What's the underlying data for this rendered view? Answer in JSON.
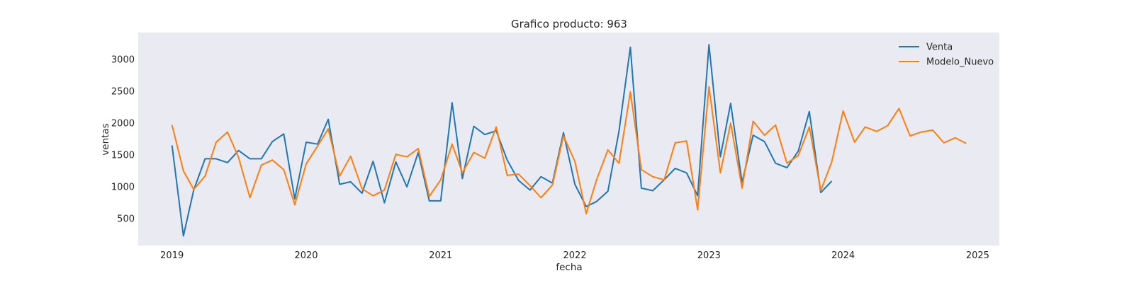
{
  "chart_data": {
    "type": "line",
    "title": "Grafico producto: 963",
    "xlabel": "fecha",
    "ylabel": "ventas",
    "xlim": [
      "2018-10-01",
      "2025-03-01"
    ],
    "ylim": [
      80,
      3420
    ],
    "x_ticks": [
      "2019-01-01",
      "2020-01-01",
      "2021-01-01",
      "2022-01-01",
      "2023-01-01",
      "2024-01-01",
      "2025-01-01"
    ],
    "x_tick_labels": [
      "2019",
      "2020",
      "2021",
      "2022",
      "2023",
      "2024",
      "2025"
    ],
    "y_ticks": [
      500,
      1000,
      1500,
      2000,
      2500,
      3000
    ],
    "y_tick_labels": [
      "500",
      "1000",
      "1500",
      "2000",
      "2500",
      "3000"
    ],
    "grid": false,
    "legend_position": "top-right",
    "background": "#eaeaf2",
    "series": [
      {
        "name": "Venta",
        "color": "#1f77b4",
        "x": [
          "2019-01",
          "2019-02",
          "2019-03",
          "2019-04",
          "2019-05",
          "2019-06",
          "2019-07",
          "2019-08",
          "2019-09",
          "2019-10",
          "2019-11",
          "2019-12",
          "2020-01",
          "2020-02",
          "2020-03",
          "2020-04",
          "2020-05",
          "2020-06",
          "2020-07",
          "2020-08",
          "2020-09",
          "2020-10",
          "2020-11",
          "2020-12",
          "2021-01",
          "2021-02",
          "2021-03",
          "2021-04",
          "2021-05",
          "2021-06",
          "2021-07",
          "2021-08",
          "2021-09",
          "2021-10",
          "2021-11",
          "2021-12",
          "2022-01",
          "2022-02",
          "2022-03",
          "2022-04",
          "2022-05",
          "2022-06",
          "2022-07",
          "2022-08",
          "2022-09",
          "2022-10",
          "2022-11",
          "2022-12",
          "2023-01",
          "2023-02",
          "2023-03",
          "2023-04",
          "2023-05",
          "2023-06",
          "2023-07",
          "2023-08",
          "2023-09",
          "2023-10",
          "2023-11",
          "2023-12"
        ],
        "values": [
          1650,
          230,
          950,
          1440,
          1440,
          1380,
          1570,
          1440,
          1440,
          1710,
          1830,
          810,
          1700,
          1670,
          2060,
          1040,
          1080,
          900,
          1400,
          750,
          1390,
          1000,
          1540,
          780,
          780,
          2320,
          1130,
          1950,
          1820,
          1880,
          1420,
          1100,
          950,
          1160,
          1060,
          1850,
          1040,
          690,
          770,
          930,
          1870,
          3190,
          980,
          940,
          1110,
          1290,
          1220,
          860,
          3230,
          1470,
          2310,
          1070,
          1810,
          1710,
          1370,
          1300,
          1560,
          2180,
          910,
          1090
        ]
      },
      {
        "name": "Modelo_Nuevo",
        "color": "#ff7f0e",
        "x": [
          "2019-01",
          "2019-02",
          "2019-03",
          "2019-04",
          "2019-05",
          "2019-06",
          "2019-07",
          "2019-08",
          "2019-09",
          "2019-10",
          "2019-11",
          "2019-12",
          "2020-01",
          "2020-02",
          "2020-03",
          "2020-04",
          "2020-05",
          "2020-06",
          "2020-07",
          "2020-08",
          "2020-09",
          "2020-10",
          "2020-11",
          "2020-12",
          "2021-01",
          "2021-02",
          "2021-03",
          "2021-04",
          "2021-05",
          "2021-06",
          "2021-07",
          "2021-08",
          "2021-09",
          "2021-10",
          "2021-11",
          "2021-12",
          "2022-01",
          "2022-02",
          "2022-03",
          "2022-04",
          "2022-05",
          "2022-06",
          "2022-07",
          "2022-08",
          "2022-09",
          "2022-10",
          "2022-11",
          "2022-12",
          "2023-01",
          "2023-02",
          "2023-03",
          "2023-04",
          "2023-05",
          "2023-06",
          "2023-07",
          "2023-08",
          "2023-09",
          "2023-10",
          "2023-11",
          "2023-12",
          "2024-01",
          "2024-02",
          "2024-03",
          "2024-04",
          "2024-05",
          "2024-06",
          "2024-07",
          "2024-08",
          "2024-09",
          "2024-10",
          "2024-11",
          "2024-12"
        ],
        "values": [
          1970,
          1250,
          960,
          1170,
          1700,
          1860,
          1460,
          830,
          1340,
          1420,
          1270,
          720,
          1360,
          1640,
          1910,
          1170,
          1480,
          970,
          860,
          950,
          1510,
          1470,
          1600,
          850,
          1110,
          1670,
          1220,
          1540,
          1450,
          1940,
          1180,
          1200,
          1020,
          830,
          1030,
          1800,
          1400,
          580,
          1110,
          1580,
          1370,
          2490,
          1270,
          1160,
          1110,
          1690,
          1720,
          640,
          2570,
          1220,
          2000,
          980,
          2030,
          1810,
          1970,
          1370,
          1490,
          1940,
          940,
          1390,
          2190,
          1700,
          1940,
          1870,
          1960,
          2230,
          1800,
          1860,
          1890,
          1690,
          1770,
          1680
        ]
      }
    ]
  }
}
